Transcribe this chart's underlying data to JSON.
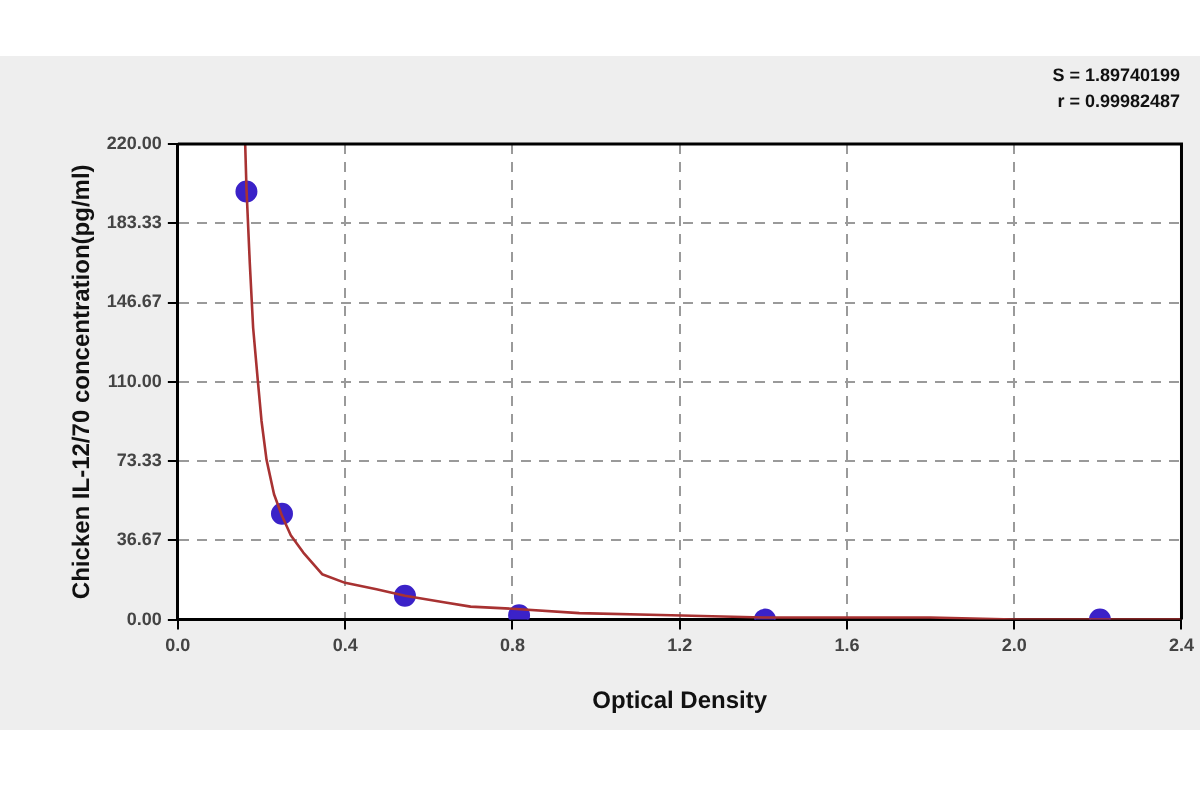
{
  "chart_data": {
    "type": "scatter",
    "xlabel": "Optical Density",
    "ylabel": "Chicken IL-12/70 concentration(pg/ml)",
    "annotations": [
      "S = 1.89740199",
      "r = 0.99982487"
    ],
    "xlim": [
      0,
      2.4
    ],
    "ylim": [
      0,
      220
    ],
    "xticks": [
      {
        "value": 0,
        "label": "0.0"
      },
      {
        "value": 0.4,
        "label": "0.4"
      },
      {
        "value": 0.8,
        "label": "0.8"
      },
      {
        "value": 1.2,
        "label": "1.2"
      },
      {
        "value": 1.6,
        "label": "1.6"
      },
      {
        "value": 2,
        "label": "2.0"
      },
      {
        "value": 2.4,
        "label": "2.4"
      }
    ],
    "yticks": [
      {
        "value": 0,
        "label": "0.00"
      },
      {
        "value": 36.67,
        "label": "36.67"
      },
      {
        "value": 73.33,
        "label": "73.33"
      },
      {
        "value": 110,
        "label": "110.00"
      },
      {
        "value": 146.67,
        "label": "146.67"
      },
      {
        "value": 183.33,
        "label": "183.33"
      },
      {
        "value": 220,
        "label": "220.00"
      }
    ],
    "grid": true,
    "series": [
      {
        "type": "line",
        "color": "#a83232",
        "marker": "none",
        "x": [
          0.161,
          0.164,
          0.172,
          0.18,
          0.191,
          0.2,
          0.212,
          0.23,
          0.249,
          0.27,
          0.3,
          0.345,
          0.4,
          0.475,
          0.543,
          0.636,
          0.7,
          0.8,
          0.96,
          1.18,
          1.4,
          1.6,
          1.8,
          2.0,
          2.2,
          2.4
        ],
        "values": [
          220,
          200,
          165,
          135,
          111,
          92,
          74,
          58,
          48,
          39,
          31,
          21,
          17,
          14,
          11,
          8,
          6,
          5,
          3,
          2,
          1,
          1,
          1,
          0,
          0,
          0
        ]
      },
      {
        "type": "scatter",
        "color": "#3b22c8",
        "marker": "circle",
        "x": [
          0.164,
          0.249,
          0.543,
          0.816,
          1.404,
          2.205
        ],
        "values": [
          198,
          49,
          11,
          2,
          0,
          0
        ]
      }
    ]
  }
}
